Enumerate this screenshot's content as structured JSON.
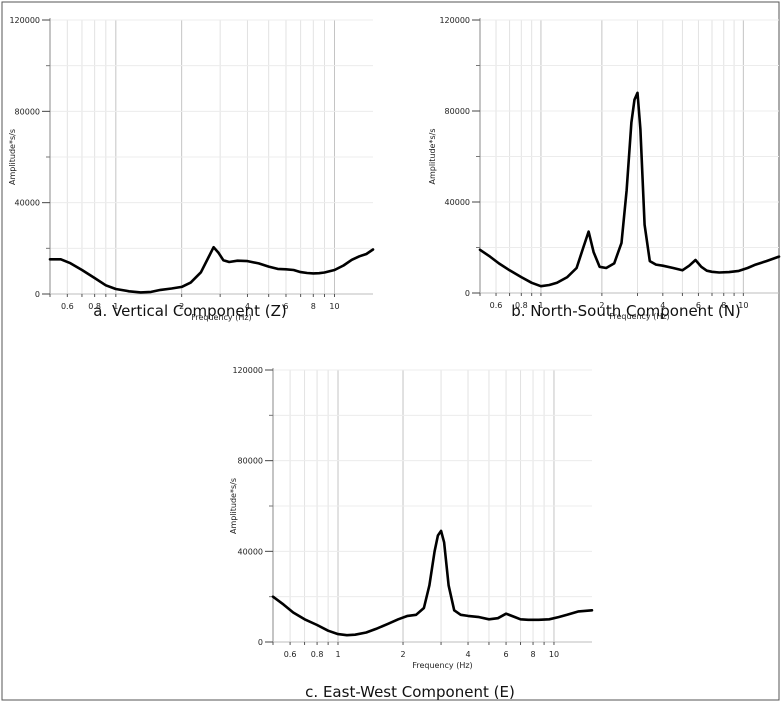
{
  "colors": {
    "line": "#000000",
    "grid": "#d4d4d4",
    "axis": "#8a8a8a",
    "frame": "#555555"
  },
  "chart_data": [
    {
      "type": "line",
      "caption": "a. Vertical Component (Z)",
      "xlabel": "Frequency (Hz)",
      "ylabel": "Amplitude*s/s",
      "xscale": "log",
      "xlim": [
        0.5,
        15
      ],
      "ylim": [
        0,
        120000
      ],
      "yticks": [
        0,
        40000,
        80000,
        120000
      ],
      "ytick_labels": [
        "0",
        "40000",
        "80000",
        "120000"
      ],
      "xticks": [
        0.6,
        0.8,
        1,
        2,
        4,
        6,
        8,
        10
      ],
      "xtick_labels": [
        "0.6",
        "0.8",
        "1",
        "2",
        "4",
        "6",
        "8",
        "10"
      ],
      "grid": true,
      "series": [
        {
          "x": [
            0.5,
            0.56,
            0.62,
            0.7,
            0.8,
            0.9,
            1.0,
            1.15,
            1.3,
            1.45,
            1.6,
            1.8,
            2.0,
            2.2,
            2.45,
            2.65,
            2.8,
            2.95,
            3.1,
            3.3,
            3.6,
            4.0,
            4.5,
            5.0,
            5.5,
            6.0,
            6.5,
            7.0,
            7.5,
            8.0,
            8.5,
            9.0,
            10.0,
            11.0,
            12.0,
            13.0,
            14.0,
            15.0
          ],
          "y": [
            15200,
            15200,
            13500,
            10500,
            7000,
            3800,
            2200,
            1200,
            700,
            900,
            1800,
            2400,
            3100,
            5000,
            9500,
            16000,
            20500,
            18000,
            14800,
            14000,
            14600,
            14400,
            13400,
            12000,
            11000,
            10800,
            10500,
            9600,
            9200,
            9000,
            9100,
            9400,
            10500,
            12500,
            15000,
            16500,
            17500,
            19500
          ]
        }
      ]
    },
    {
      "type": "line",
      "caption": "b. North-South Component (N)",
      "xlabel": "Frequency (Hz)",
      "ylabel": "Amplitude*s/s",
      "xscale": "log",
      "xlim": [
        0.5,
        15
      ],
      "ylim": [
        0,
        120000
      ],
      "yticks": [
        0,
        40000,
        80000,
        120000
      ],
      "ytick_labels": [
        "0",
        "40000",
        "80000",
        "120000"
      ],
      "xticks": [
        0.6,
        0.8,
        1,
        2,
        4,
        6,
        8,
        10
      ],
      "xtick_labels": [
        "0.6",
        "0.8",
        "1",
        "2",
        "4",
        "6",
        "8",
        "10"
      ],
      "grid": true,
      "series": [
        {
          "x": [
            0.5,
            0.56,
            0.62,
            0.7,
            0.8,
            0.9,
            1.0,
            1.1,
            1.2,
            1.35,
            1.5,
            1.62,
            1.72,
            1.82,
            1.95,
            2.1,
            2.3,
            2.5,
            2.65,
            2.8,
            2.9,
            3.0,
            3.1,
            3.25,
            3.45,
            3.7,
            4.0,
            4.5,
            5.0,
            5.4,
            5.8,
            6.2,
            6.6,
            7.0,
            7.6,
            8.5,
            9.5,
            10.5,
            11.5,
            13.0,
            15.0
          ],
          "y": [
            19000,
            16000,
            13000,
            10000,
            7000,
            4500,
            3000,
            3500,
            4500,
            7000,
            11000,
            20000,
            27000,
            18000,
            11500,
            11000,
            13000,
            22000,
            45000,
            75000,
            85000,
            88000,
            72000,
            30000,
            14000,
            12500,
            12000,
            11000,
            10000,
            12000,
            14500,
            11500,
            9800,
            9300,
            9000,
            9200,
            9700,
            11000,
            12500,
            14000,
            16000
          ]
        }
      ]
    },
    {
      "type": "line",
      "caption": "c. East-West Component (E)",
      "xlabel": "Frequency (Hz)",
      "ylabel": "Amplitude*s/s",
      "xscale": "log",
      "xlim": [
        0.5,
        15
      ],
      "ylim": [
        0,
        120000
      ],
      "yticks": [
        0,
        40000,
        80000,
        120000
      ],
      "ytick_labels": [
        "0",
        "40000",
        "80000",
        "120000"
      ],
      "xticks": [
        0.6,
        0.8,
        1,
        2,
        4,
        6,
        8,
        10
      ],
      "xtick_labels": [
        "0.6",
        "0.8",
        "1",
        "2",
        "4",
        "6",
        "8",
        "10"
      ],
      "grid": true,
      "series": [
        {
          "x": [
            0.5,
            0.56,
            0.62,
            0.7,
            0.8,
            0.9,
            1.0,
            1.1,
            1.2,
            1.35,
            1.5,
            1.7,
            1.9,
            2.1,
            2.3,
            2.5,
            2.65,
            2.8,
            2.9,
            3.0,
            3.1,
            3.25,
            3.45,
            3.7,
            4.0,
            4.5,
            5.0,
            5.5,
            6.0,
            6.6,
            7.0,
            7.6,
            8.5,
            9.5,
            10.5,
            11.5,
            13.0,
            15.0
          ],
          "y": [
            20000,
            16500,
            13000,
            10000,
            7500,
            5000,
            3500,
            3000,
            3200,
            4200,
            5800,
            8000,
            10000,
            11500,
            12000,
            15000,
            25000,
            40000,
            47000,
            49000,
            44000,
            25000,
            14000,
            12000,
            11500,
            11000,
            10000,
            10500,
            12500,
            11000,
            10000,
            9800,
            9800,
            10000,
            11000,
            12000,
            13500,
            14000
          ]
        }
      ]
    }
  ]
}
